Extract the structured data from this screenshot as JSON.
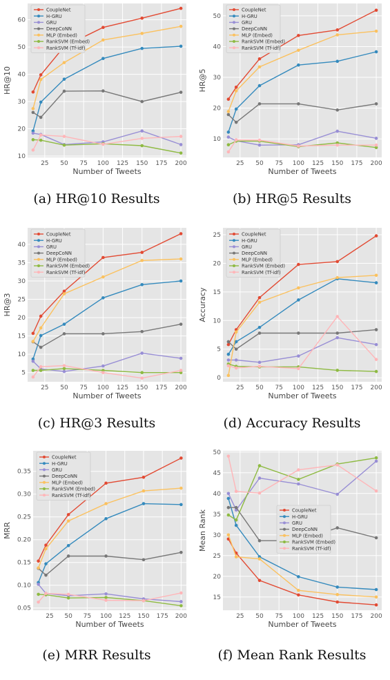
{
  "chart_data": [
    {
      "type": "line",
      "caption": "(a) HR@10 Results",
      "xlabel": "Number of Tweets",
      "ylabel": "HR@10",
      "x": [
        10,
        20,
        50,
        100,
        150,
        200
      ],
      "xticks": [
        25,
        50,
        75,
        100,
        125,
        150,
        175,
        200
      ],
      "xlim": [
        3,
        207
      ],
      "ylim": [
        9.5,
        66
      ],
      "yticks": [
        10,
        20,
        30,
        40,
        50,
        60
      ],
      "legend": "top-left",
      "grid": true,
      "series": [
        {
          "name": "CoupleNet",
          "color": "#e24a33",
          "values": [
            33.5,
            39.8,
            50.2,
            57.2,
            60.6,
            64.2
          ]
        },
        {
          "name": "H-GRU",
          "color": "#348abd",
          "values": [
            19.2,
            29.8,
            38.2,
            45.8,
            49.5,
            50.3
          ]
        },
        {
          "name": "GRU",
          "color": "#988ed5",
          "values": [
            18.4,
            17.9,
            14.2,
            15.2,
            19.2,
            14.2
          ]
        },
        {
          "name": "DeepCoNN",
          "color": "#777777",
          "values": [
            26.0,
            24.2,
            33.8,
            33.9,
            30.0,
            33.4
          ]
        },
        {
          "name": "MLP (Embed)",
          "color": "#fbc15e",
          "values": [
            27.4,
            38.1,
            44.3,
            52.6,
            55.0,
            57.6
          ]
        },
        {
          "name": "RankSVM (Embed)",
          "color": "#8eba42",
          "values": [
            16.0,
            15.8,
            14.0,
            14.5,
            13.8,
            11.1
          ]
        },
        {
          "name": "RankSVM (Tf-idf)",
          "color": "#ffb5b8",
          "values": [
            12.2,
            17.7,
            17.2,
            14.3,
            16.5,
            17.2
          ]
        }
      ]
    },
    {
      "type": "line",
      "caption": "(b) HR@5 Results",
      "xlabel": "Number of Tweets",
      "ylabel": "HR@5",
      "x": [
        10,
        20,
        50,
        100,
        150,
        200
      ],
      "xticks": [
        25,
        50,
        75,
        100,
        125,
        150,
        175,
        200
      ],
      "xlim": [
        3,
        207
      ],
      "ylim": [
        4,
        54
      ],
      "yticks": [
        10,
        20,
        30,
        40,
        50
      ],
      "legend": "top-left",
      "grid": true,
      "series": [
        {
          "name": "CoupleNet",
          "color": "#e24a33",
          "values": [
            22.9,
            26.8,
            36.0,
            43.6,
            45.4,
            51.8
          ]
        },
        {
          "name": "H-GRU",
          "color": "#348abd",
          "values": [
            12.2,
            19.7,
            27.3,
            34.0,
            35.2,
            38.3
          ]
        },
        {
          "name": "GRU",
          "color": "#988ed5",
          "values": [
            10.6,
            9.4,
            8.0,
            8.1,
            12.5,
            10.2
          ]
        },
        {
          "name": "DeepCoNN",
          "color": "#777777",
          "values": [
            17.9,
            15.4,
            21.4,
            21.4,
            19.4,
            21.4
          ]
        },
        {
          "name": "MLP (Embed)",
          "color": "#fbc15e",
          "values": [
            18.9,
            25.6,
            33.4,
            38.8,
            43.8,
            45.0
          ]
        },
        {
          "name": "RankSVM (Embed)",
          "color": "#8eba42",
          "values": [
            8.1,
            9.3,
            9.3,
            7.5,
            8.7,
            7.2
          ]
        },
        {
          "name": "RankSVM (Tf-idf)",
          "color": "#ffb5b8",
          "values": [
            5.8,
            9.7,
            9.6,
            7.7,
            8.0,
            8.0
          ]
        }
      ]
    },
    {
      "type": "line",
      "caption": "(c) HR@3 Results",
      "xlabel": "Number of Tweets",
      "ylabel": "HR@3",
      "x": [
        10,
        20,
        50,
        100,
        150,
        200
      ],
      "xticks": [
        25,
        50,
        75,
        100,
        125,
        150,
        175,
        200
      ],
      "xlim": [
        3,
        207
      ],
      "ylim": [
        2.5,
        44.5
      ],
      "yticks": [
        5,
        10,
        15,
        20,
        25,
        30,
        35,
        40
      ],
      "legend": "top-left",
      "grid": true,
      "series": [
        {
          "name": "CoupleNet",
          "color": "#e24a33",
          "values": [
            15.7,
            20.4,
            27.2,
            36.4,
            37.8,
            42.9
          ]
        },
        {
          "name": "H-GRU",
          "color": "#348abd",
          "values": [
            8.7,
            15.1,
            18.2,
            25.4,
            29.0,
            30.0
          ]
        },
        {
          "name": "GRU",
          "color": "#988ed5",
          "values": [
            8.1,
            6.0,
            5.3,
            6.8,
            10.3,
            8.9
          ]
        },
        {
          "name": "DeepCoNN",
          "color": "#777777",
          "values": [
            13.4,
            11.9,
            15.6,
            15.6,
            16.2,
            18.2
          ]
        },
        {
          "name": "MLP (Embed)",
          "color": "#fbc15e",
          "values": [
            13.5,
            17.2,
            26.5,
            31.1,
            35.6,
            36.0
          ]
        },
        {
          "name": "RankSVM (Embed)",
          "color": "#8eba42",
          "values": [
            5.6,
            5.6,
            6.1,
            5.6,
            5.0,
            5.0
          ]
        },
        {
          "name": "RankSVM (Tf-idf)",
          "color": "#ffb5b8",
          "values": [
            3.8,
            6.6,
            6.9,
            5.0,
            3.5,
            5.6
          ]
        }
      ]
    },
    {
      "type": "line",
      "caption": "(d) Accuracy Results",
      "xlabel": "Number of Tweets",
      "ylabel": "Accuracy",
      "x": [
        10,
        20,
        50,
        100,
        150,
        200
      ],
      "xticks": [
        25,
        50,
        75,
        100,
        125,
        150,
        175,
        200
      ],
      "xlim": [
        3,
        207
      ],
      "ylim": [
        -0.7,
        26.2
      ],
      "yticks": [
        0,
        5,
        10,
        15,
        20,
        25
      ],
      "legend": "top-left",
      "grid": true,
      "series": [
        {
          "name": "CoupleNet",
          "color": "#e24a33",
          "values": [
            5.8,
            8.4,
            14.0,
            19.8,
            20.3,
            24.8
          ]
        },
        {
          "name": "H-GRU",
          "color": "#348abd",
          "values": [
            4.1,
            6.3,
            8.8,
            13.6,
            17.3,
            16.6
          ]
        },
        {
          "name": "GRU",
          "color": "#988ed5",
          "values": [
            3.1,
            3.1,
            2.7,
            3.8,
            7.0,
            5.8
          ]
        },
        {
          "name": "DeepCoNN",
          "color": "#777777",
          "values": [
            6.3,
            5.0,
            7.8,
            7.8,
            7.8,
            8.4
          ]
        },
        {
          "name": "MLP (Embed)",
          "color": "#fbc15e",
          "values": [
            0.4,
            8.0,
            13.2,
            15.7,
            17.5,
            17.9
          ]
        },
        {
          "name": "RankSVM (Embed)",
          "color": "#8eba42",
          "values": [
            2.4,
            2.0,
            1.9,
            1.9,
            1.3,
            1.1
          ]
        },
        {
          "name": "RankSVM (Tf-idf)",
          "color": "#ffb5b8",
          "values": [
            2.1,
            1.7,
            2.0,
            1.6,
            10.7,
            3.2
          ]
        }
      ]
    },
    {
      "type": "line",
      "caption": "(e) MRR Results",
      "xlabel": "Number of Tweets",
      "ylabel": "MRR",
      "x": [
        10,
        20,
        50,
        100,
        150,
        200
      ],
      "xticks": [
        25,
        50,
        75,
        100,
        125,
        150,
        175,
        200
      ],
      "xlim": [
        3,
        207
      ],
      "ylim": [
        0.045,
        0.395
      ],
      "yticks": [
        0.05,
        0.1,
        0.15,
        0.2,
        0.25,
        0.3,
        0.35
      ],
      "ytick_labels": [
        "0.05",
        "0.10",
        "0.15",
        "0.20",
        "0.25",
        "0.30",
        "0.35"
      ],
      "legend": "top-left",
      "grid": true,
      "series": [
        {
          "name": "CoupleNet",
          "color": "#e24a33",
          "values": [
            0.153,
            0.188,
            0.255,
            0.324,
            0.337,
            0.379
          ]
        },
        {
          "name": "H-GRU",
          "color": "#348abd",
          "values": [
            0.106,
            0.147,
            0.187,
            0.246,
            0.279,
            0.277
          ]
        },
        {
          "name": "GRU",
          "color": "#988ed5",
          "values": [
            0.102,
            0.082,
            0.077,
            0.081,
            0.07,
            0.064
          ]
        },
        {
          "name": "DeepCoNN",
          "color": "#777777",
          "values": [
            0.137,
            0.122,
            0.164,
            0.164,
            0.156,
            0.172
          ]
        },
        {
          "name": "MLP (Embed)",
          "color": "#fbc15e",
          "values": [
            0.138,
            0.18,
            0.241,
            0.279,
            0.307,
            0.313
          ]
        },
        {
          "name": "RankSVM (Embed)",
          "color": "#8eba42",
          "values": [
            0.08,
            0.079,
            0.072,
            0.073,
            0.066,
            0.055
          ]
        },
        {
          "name": "RankSVM (Tf-idf)",
          "color": "#ffb5b8",
          "values": [
            0.063,
            0.082,
            0.08,
            0.067,
            0.066,
            0.083
          ]
        }
      ]
    },
    {
      "type": "line",
      "caption": "(f) Mean Rank Results",
      "xlabel": "Number of Tweets",
      "ylabel": "Mean Rank",
      "x": [
        10,
        20,
        50,
        100,
        150,
        200
      ],
      "xticks": [
        25,
        50,
        75,
        100,
        125,
        150,
        175,
        200
      ],
      "xlim": [
        3,
        207
      ],
      "ylim": [
        11.8,
        50.3
      ],
      "yticks": [
        15,
        20,
        25,
        30,
        35,
        40,
        45,
        50
      ],
      "legend": "center",
      "grid": true,
      "series": [
        {
          "name": "CoupleNet",
          "color": "#e24a33",
          "values": [
            29.0,
            25.6,
            19.0,
            15.5,
            13.8,
            13.1
          ]
        },
        {
          "name": "H-GRU",
          "color": "#348abd",
          "values": [
            38.8,
            32.3,
            24.7,
            19.9,
            17.4,
            16.8
          ]
        },
        {
          "name": "GRU",
          "color": "#988ed5",
          "values": [
            40.0,
            36.0,
            43.7,
            42.3,
            39.8,
            47.8
          ]
        },
        {
          "name": "DeepCoNN",
          "color": "#777777",
          "values": [
            36.6,
            36.6,
            28.6,
            28.6,
            31.7,
            29.3
          ]
        },
        {
          "name": "MLP (Embed)",
          "color": "#fbc15e",
          "values": [
            30.0,
            24.7,
            24.2,
            16.6,
            15.6,
            15.0
          ]
        },
        {
          "name": "RankSVM (Embed)",
          "color": "#8eba42",
          "values": [
            34.8,
            33.6,
            46.7,
            43.4,
            47.1,
            48.6
          ]
        },
        {
          "name": "RankSVM (Tf-idf)",
          "color": "#ffb5b8",
          "values": [
            49.0,
            40.5,
            40.1,
            45.7,
            46.9,
            40.6
          ]
        }
      ]
    }
  ]
}
